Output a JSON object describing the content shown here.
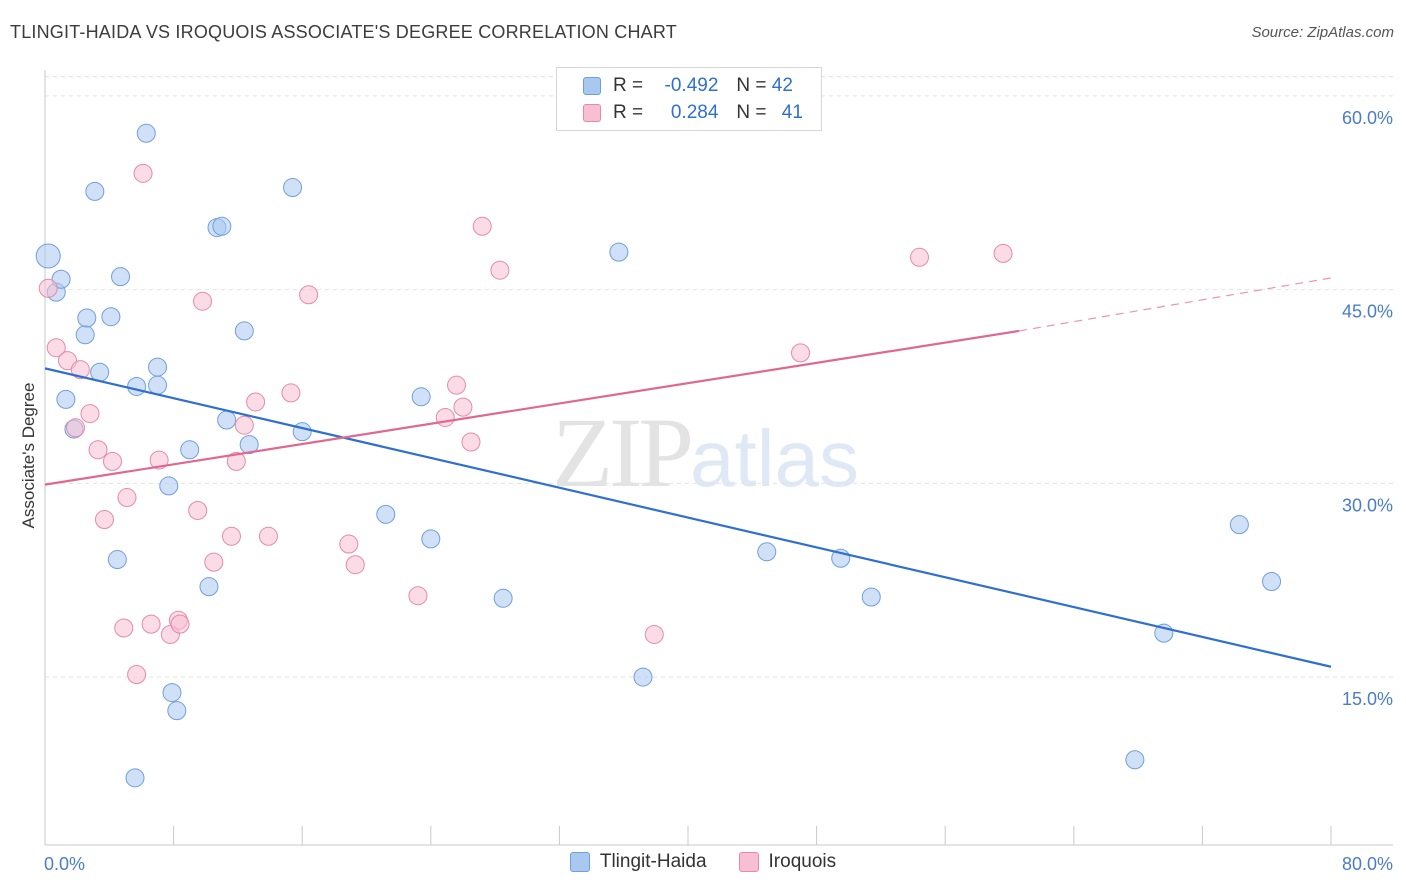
{
  "title": "TLINGIT-HAIDA VS IROQUOIS ASSOCIATE'S DEGREE CORRELATION CHART",
  "source": "Source: ZipAtlas.com",
  "watermark": {
    "zip": "ZIP",
    "atlas": "atlas"
  },
  "legend": {
    "r_label": "R =",
    "n_label": "N =",
    "rows": [
      {
        "r": "-0.492",
        "n": "42",
        "color": "#a9c8f0",
        "border": "#6f9fdc"
      },
      {
        "r": "0.284",
        "n": "41",
        "color": "#f7bfd1",
        "border": "#e58aa8"
      }
    ]
  },
  "chart_data": {
    "type": "scatter",
    "title": "TLINGIT-HAIDA VS IROQUOIS ASSOCIATE'S DEGREE CORRELATION CHART",
    "xlabel": "",
    "ylabel": "Associate's Degree",
    "xlim": [
      0,
      80
    ],
    "ylim": [
      2,
      62
    ],
    "x_tick_labels": [
      "0.0%",
      "80.0%"
    ],
    "y_ticks": [
      15,
      30,
      45,
      60
    ],
    "y_tick_labels": [
      "15.0%",
      "30.0%",
      "45.0%",
      "60.0%"
    ],
    "grid": true,
    "legend_position": "top-center",
    "series": [
      {
        "name": "Tlingit-Haida",
        "color": "#a9c8f0",
        "stroke": "#6f9fdc",
        "trend": {
          "x": [
            0,
            80
          ],
          "y": [
            38.9,
            15.8
          ],
          "color": "#2f6fd0"
        },
        "points": [
          [
            0.2,
            47.6
          ],
          [
            0.7,
            44.8
          ],
          [
            1.0,
            45.8
          ],
          [
            1.3,
            36.5
          ],
          [
            1.8,
            34.2
          ],
          [
            2.5,
            41.5
          ],
          [
            2.6,
            42.8
          ],
          [
            3.1,
            52.6
          ],
          [
            3.4,
            38.6
          ],
          [
            4.1,
            42.9
          ],
          [
            4.5,
            24.1
          ],
          [
            4.7,
            46.0
          ],
          [
            5.6,
            7.2
          ],
          [
            5.7,
            37.5
          ],
          [
            6.3,
            57.1
          ],
          [
            7.0,
            39.0
          ],
          [
            7.0,
            37.6
          ],
          [
            7.7,
            29.8
          ],
          [
            7.9,
            13.8
          ],
          [
            8.2,
            12.4
          ],
          [
            9.0,
            32.6
          ],
          [
            10.2,
            22.0
          ],
          [
            10.7,
            49.8
          ],
          [
            11.0,
            49.9
          ],
          [
            11.3,
            34.9
          ],
          [
            12.4,
            41.8
          ],
          [
            12.7,
            33.0
          ],
          [
            15.4,
            52.9
          ],
          [
            16.0,
            34.0
          ],
          [
            21.2,
            27.6
          ],
          [
            23.4,
            36.7
          ],
          [
            24.0,
            25.7
          ],
          [
            28.5,
            21.1
          ],
          [
            35.7,
            47.9
          ],
          [
            37.2,
            15.0
          ],
          [
            44.9,
            24.7
          ],
          [
            49.5,
            24.2
          ],
          [
            51.4,
            21.2
          ],
          [
            67.8,
            8.6
          ],
          [
            69.6,
            18.4
          ],
          [
            74.3,
            26.8
          ],
          [
            76.3,
            22.4
          ]
        ]
      },
      {
        "name": "Iroquois",
        "color": "#f7bfd1",
        "stroke": "#e58aa8",
        "trend": {
          "x": [
            0,
            60.6
          ],
          "y": [
            29.9,
            41.8
          ],
          "dashed_to": [
            80,
            45.9
          ],
          "color": "#e06890"
        },
        "points": [
          [
            0.2,
            45.1
          ],
          [
            0.7,
            40.5
          ],
          [
            1.4,
            39.5
          ],
          [
            1.9,
            34.3
          ],
          [
            2.2,
            38.8
          ],
          [
            2.8,
            35.4
          ],
          [
            3.3,
            32.6
          ],
          [
            3.7,
            27.2
          ],
          [
            4.2,
            31.7
          ],
          [
            4.9,
            18.8
          ],
          [
            5.1,
            28.9
          ],
          [
            5.7,
            15.2
          ],
          [
            6.1,
            54.0
          ],
          [
            6.6,
            19.1
          ],
          [
            7.1,
            31.8
          ],
          [
            7.8,
            18.3
          ],
          [
            8.3,
            19.4
          ],
          [
            8.4,
            19.1
          ],
          [
            9.5,
            27.9
          ],
          [
            9.8,
            44.1
          ],
          [
            10.5,
            23.9
          ],
          [
            11.6,
            25.9
          ],
          [
            11.9,
            31.7
          ],
          [
            12.4,
            34.5
          ],
          [
            13.1,
            36.3
          ],
          [
            13.9,
            25.9
          ],
          [
            15.3,
            37.0
          ],
          [
            16.4,
            44.6
          ],
          [
            18.9,
            25.3
          ],
          [
            19.3,
            23.7
          ],
          [
            23.2,
            21.3
          ],
          [
            24.9,
            35.1
          ],
          [
            25.6,
            37.6
          ],
          [
            26.0,
            35.9
          ],
          [
            26.5,
            33.2
          ],
          [
            27.2,
            49.9
          ],
          [
            28.3,
            46.5
          ],
          [
            37.9,
            18.3
          ],
          [
            47.0,
            40.1
          ],
          [
            54.4,
            47.5
          ],
          [
            59.6,
            47.8
          ]
        ]
      }
    ]
  }
}
